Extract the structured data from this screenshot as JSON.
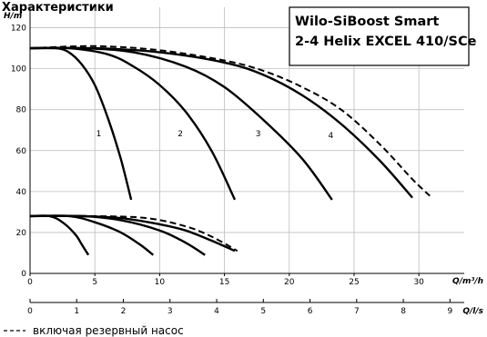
{
  "chart_data": {
    "type": "line",
    "title_top": "Характеристики",
    "title_lines": [
      "Wilo-SiBoost Smart",
      "2-4 Helix EXCEL 410/SCe"
    ],
    "ylabel": "H/m",
    "xlabel": "Q/m³/h",
    "xlabel_secondary": "Q/l/s",
    "ylim": [
      0,
      130
    ],
    "xlim": [
      0,
      33.5
    ],
    "y_ticks": [
      0,
      20,
      40,
      60,
      80,
      100,
      120
    ],
    "x_ticks": [
      0,
      5,
      10,
      15,
      20,
      25,
      30
    ],
    "x_ticks_secondary": [
      0,
      1,
      2,
      3,
      4,
      5,
      6,
      7,
      8,
      9
    ],
    "grid": true,
    "legend_text": "включая резервный насос",
    "head_series": [
      {
        "name": "1",
        "style": "solid",
        "label_at": [
          5.3,
          67
        ],
        "points": [
          [
            0,
            110
          ],
          [
            2,
            110
          ],
          [
            3,
            108
          ],
          [
            4,
            102
          ],
          [
            5,
            92
          ],
          [
            6,
            76
          ],
          [
            7,
            56
          ],
          [
            7.8,
            36
          ]
        ]
      },
      {
        "name": "2",
        "style": "solid",
        "label_at": [
          11.6,
          67
        ],
        "points": [
          [
            0,
            110
          ],
          [
            3,
            110
          ],
          [
            6,
            107
          ],
          [
            8,
            101
          ],
          [
            10,
            92
          ],
          [
            12,
            79
          ],
          [
            14,
            60
          ],
          [
            15.8,
            36
          ]
        ]
      },
      {
        "name": "3",
        "style": "solid",
        "label_at": [
          17.6,
          67
        ],
        "points": [
          [
            0,
            110
          ],
          [
            4,
            110
          ],
          [
            8,
            108
          ],
          [
            12,
            101
          ],
          [
            15,
            91
          ],
          [
            18,
            75
          ],
          [
            21,
            56
          ],
          [
            23.3,
            36
          ]
        ]
      },
      {
        "name": "4",
        "style": "solid",
        "label_at": [
          23.2,
          66
        ],
        "points": [
          [
            0,
            110
          ],
          [
            5,
            110
          ],
          [
            10,
            108
          ],
          [
            15,
            103
          ],
          [
            18,
            97
          ],
          [
            21,
            87
          ],
          [
            24,
            73
          ],
          [
            27,
            55
          ],
          [
            29.5,
            37
          ]
        ]
      },
      {
        "name": "",
        "style": "dashed",
        "points": [
          [
            0,
            110
          ],
          [
            5,
            111
          ],
          [
            10,
            109
          ],
          [
            15,
            104
          ],
          [
            18,
            99
          ],
          [
            21,
            91
          ],
          [
            24,
            80
          ],
          [
            27,
            63
          ],
          [
            29.5,
            46
          ],
          [
            31,
            37
          ]
        ]
      }
    ],
    "power_series": [
      {
        "name": "",
        "style": "solid",
        "points": [
          [
            0,
            28
          ],
          [
            1.5,
            28
          ],
          [
            2.5,
            25
          ],
          [
            3.5,
            19
          ],
          [
            4,
            14
          ],
          [
            4.5,
            9
          ]
        ]
      },
      {
        "name": "",
        "style": "solid",
        "points": [
          [
            0,
            28
          ],
          [
            3,
            28
          ],
          [
            5,
            25
          ],
          [
            7,
            20
          ],
          [
            8.5,
            14
          ],
          [
            9.5,
            9
          ]
        ]
      },
      {
        "name": "",
        "style": "solid",
        "points": [
          [
            0,
            28
          ],
          [
            4,
            28
          ],
          [
            7,
            26
          ],
          [
            10,
            21
          ],
          [
            12,
            15
          ],
          [
            13.5,
            9
          ]
        ]
      },
      {
        "name": "",
        "style": "solid",
        "points": [
          [
            0,
            28
          ],
          [
            4,
            28
          ],
          [
            7,
            27
          ],
          [
            10,
            24
          ],
          [
            12,
            21
          ],
          [
            14,
            16
          ],
          [
            15.8,
            11
          ]
        ]
      },
      {
        "name": "",
        "style": "dashed",
        "points": [
          [
            0,
            28
          ],
          [
            5,
            28
          ],
          [
            9,
            27
          ],
          [
            12,
            23
          ],
          [
            14,
            18
          ],
          [
            16,
            11
          ]
        ]
      }
    ]
  }
}
